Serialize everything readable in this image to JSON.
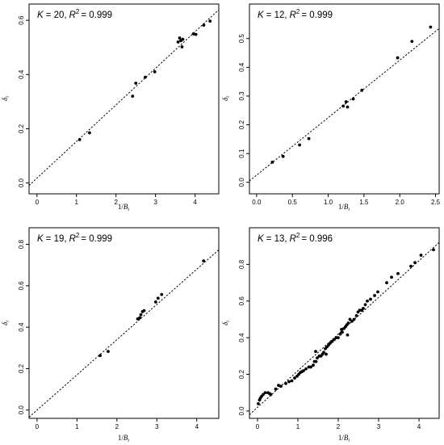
{
  "chart_data": [
    {
      "type": "scatter",
      "title": "K = 20, R² = 0.999",
      "title_parts": {
        "k_label": "K",
        "k_value": "= 20,",
        "r_label": "R",
        "r_exp": "2",
        "r_value": "= 0.999"
      },
      "xlabel": "1/B_i",
      "ylabel": "δ_i",
      "xlim": [
        -0.2,
        4.6
      ],
      "ylim": [
        -0.04,
        0.66
      ],
      "xticks": [
        0,
        1,
        2,
        3,
        4
      ],
      "yticks": [
        0.0,
        0.2,
        0.4,
        0.6
      ],
      "grid": false,
      "fit_line": {
        "slope": 0.135,
        "intercept": 0.018,
        "style": "dotted"
      },
      "points": [
        [
          1.08,
          0.16
        ],
        [
          1.33,
          0.185
        ],
        [
          2.42,
          0.32
        ],
        [
          2.5,
          0.368
        ],
        [
          2.74,
          0.39
        ],
        [
          2.98,
          0.41
        ],
        [
          3.57,
          0.52
        ],
        [
          3.61,
          0.535
        ],
        [
          3.64,
          0.525
        ],
        [
          3.67,
          0.502
        ],
        [
          3.69,
          0.53
        ],
        [
          3.96,
          0.55
        ],
        [
          4.02,
          0.548
        ],
        [
          4.22,
          0.582
        ],
        [
          4.38,
          0.597
        ]
      ]
    },
    {
      "type": "scatter",
      "title": "K = 12, R² = 0.999",
      "title_parts": {
        "k_label": "K",
        "k_value": "= 12,",
        "r_label": "R",
        "r_exp": "2",
        "r_value": "= 0.999"
      },
      "xlabel": "1/B_i",
      "ylabel": "δ_i",
      "xlim": [
        -0.1,
        2.55
      ],
      "ylim": [
        -0.04,
        0.62
      ],
      "xticks": [
        0.0,
        0.5,
        1.0,
        1.5,
        2.0,
        2.5
      ],
      "yticks": [
        0.0,
        0.1,
        0.2,
        0.3,
        0.4,
        0.5
      ],
      "grid": false,
      "fit_line": {
        "slope": 0.2,
        "intercept": 0.025,
        "style": "dotted"
      },
      "points": [
        [
          0.22,
          0.07
        ],
        [
          0.37,
          0.09
        ],
        [
          0.6,
          0.13
        ],
        [
          0.73,
          0.152
        ],
        [
          1.21,
          0.265
        ],
        [
          1.25,
          0.28
        ],
        [
          1.27,
          0.262
        ],
        [
          1.35,
          0.29
        ],
        [
          1.47,
          0.32
        ],
        [
          1.97,
          0.433
        ],
        [
          2.17,
          0.49
        ],
        [
          2.43,
          0.54
        ]
      ]
    },
    {
      "type": "scatter",
      "title": "K = 19, R² = 0.999",
      "title_parts": {
        "k_label": "K",
        "k_value": "= 19,",
        "r_label": "R",
        "r_exp": "2",
        "r_value": "= 0.999"
      },
      "xlabel": "1/B_i",
      "ylabel": "δ_i",
      "xlim": [
        -0.2,
        4.55
      ],
      "ylim": [
        -0.04,
        0.88
      ],
      "xticks": [
        0,
        1,
        2,
        3,
        4
      ],
      "yticks": [
        0.0,
        0.2,
        0.4,
        0.6,
        0.8
      ],
      "grid": false,
      "fit_line": {
        "slope": 0.17,
        "intercept": 0.0,
        "style": "dotted"
      },
      "points": [
        [
          1.58,
          0.263
        ],
        [
          1.78,
          0.283
        ],
        [
          2.52,
          0.44
        ],
        [
          2.57,
          0.445
        ],
        [
          2.6,
          0.46
        ],
        [
          2.64,
          0.475
        ],
        [
          2.68,
          0.48
        ],
        [
          2.97,
          0.522
        ],
        [
          3.03,
          0.54
        ],
        [
          3.12,
          0.558
        ],
        [
          4.17,
          0.72
        ]
      ]
    },
    {
      "type": "scatter",
      "title": "K = 13, R² = 0.996",
      "title_parts": {
        "k_label": "K",
        "k_value": "= 13,",
        "r_label": "R",
        "r_exp": "2",
        "r_value": "= 0.996"
      },
      "xlabel": "1/B_i",
      "ylabel": "δ_i",
      "xlim": [
        -0.2,
        4.5
      ],
      "ylim": [
        -0.04,
        1.0
      ],
      "xticks": [
        0,
        1,
        2,
        3,
        4
      ],
      "yticks": [
        0.0,
        0.2,
        0.4,
        0.6,
        0.8
      ],
      "grid": false,
      "fit_line": {
        "slope": 0.2,
        "intercept": 0.02,
        "style": "dotted"
      },
      "points": [
        [
          0.02,
          0.04
        ],
        [
          0.05,
          0.06
        ],
        [
          0.07,
          0.07
        ],
        [
          0.1,
          0.08
        ],
        [
          0.14,
          0.09
        ],
        [
          0.19,
          0.1
        ],
        [
          0.26,
          0.1
        ],
        [
          0.33,
          0.09
        ],
        [
          0.45,
          0.12
        ],
        [
          0.52,
          0.14
        ],
        [
          0.58,
          0.135
        ],
        [
          0.7,
          0.15
        ],
        [
          0.78,
          0.16
        ],
        [
          0.85,
          0.165
        ],
        [
          0.92,
          0.18
        ],
        [
          0.98,
          0.19
        ],
        [
          1.02,
          0.2
        ],
        [
          1.06,
          0.21
        ],
        [
          1.1,
          0.215
        ],
        [
          1.14,
          0.22
        ],
        [
          1.2,
          0.23
        ],
        [
          1.27,
          0.24
        ],
        [
          1.32,
          0.24
        ],
        [
          1.38,
          0.25
        ],
        [
          1.41,
          0.27
        ],
        [
          1.45,
          0.27
        ],
        [
          1.48,
          0.29
        ],
        [
          1.53,
          0.3
        ],
        [
          1.57,
          0.3
        ],
        [
          1.61,
          0.31
        ],
        [
          1.64,
          0.32
        ],
        [
          1.68,
          0.34
        ],
        [
          1.72,
          0.35
        ],
        [
          1.76,
          0.36
        ],
        [
          1.8,
          0.37
        ],
        [
          1.85,
          0.38
        ],
        [
          1.9,
          0.39
        ],
        [
          1.95,
          0.4
        ],
        [
          2.0,
          0.4
        ],
        [
          2.05,
          0.42
        ],
        [
          2.1,
          0.43
        ],
        [
          2.14,
          0.45
        ],
        [
          2.18,
          0.46
        ],
        [
          2.21,
          0.47
        ],
        [
          2.25,
          0.48
        ],
        [
          2.29,
          0.5
        ],
        [
          2.34,
          0.49
        ],
        [
          2.39,
          0.5
        ],
        [
          2.45,
          0.52
        ],
        [
          2.49,
          0.54
        ],
        [
          2.53,
          0.55
        ],
        [
          2.58,
          0.55
        ],
        [
          2.62,
          0.56
        ],
        [
          2.67,
          0.58
        ],
        [
          2.72,
          0.6
        ],
        [
          2.8,
          0.61
        ],
        [
          2.9,
          0.63
        ],
        [
          2.98,
          0.65
        ],
        [
          3.2,
          0.7
        ],
        [
          3.32,
          0.73
        ],
        [
          3.48,
          0.75
        ],
        [
          3.8,
          0.79
        ],
        [
          3.9,
          0.81
        ],
        [
          4.05,
          0.85
        ],
        [
          4.36,
          0.88
        ],
        [
          1.44,
          0.325
        ],
        [
          2.23,
          0.415
        ],
        [
          2.08,
          0.445
        ],
        [
          1.7,
          0.31
        ],
        [
          0.3,
          0.095
        ]
      ]
    }
  ]
}
